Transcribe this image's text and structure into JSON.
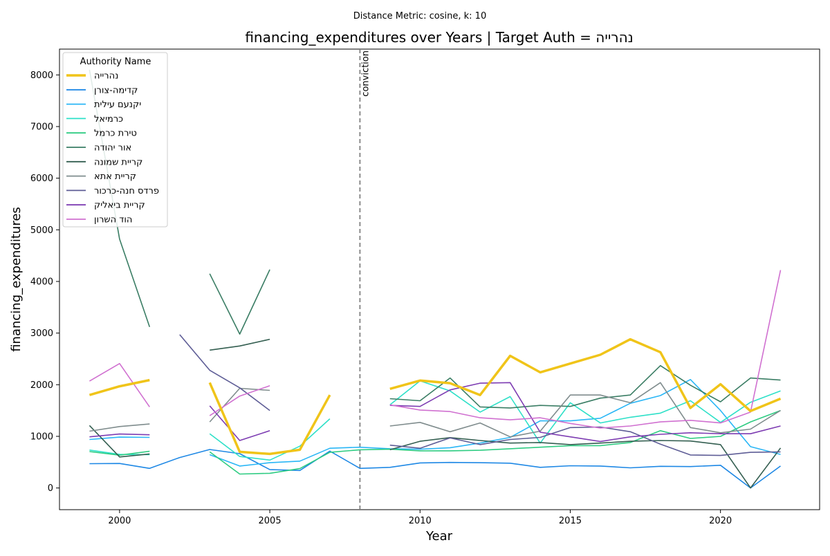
{
  "chart_data": {
    "type": "line",
    "subtitle": "Distance Metric: cosine, k: 10",
    "title": "financing_expenditures over Years | Target Auth = נהרייה",
    "xlabel": "Year",
    "ylabel": "financing_expenditures",
    "xlim": [
      1998,
      2023.3
    ],
    "ylim": [
      -420,
      8500
    ],
    "xticks": [
      2000,
      2005,
      2010,
      2015,
      2020
    ],
    "yticks": [
      0,
      1000,
      2000,
      3000,
      4000,
      5000,
      6000,
      7000,
      8000
    ],
    "grid": false,
    "legend": {
      "title": "Authority Name",
      "position": "top-left"
    },
    "annotations": [
      {
        "type": "vline",
        "x": 2008,
        "label": "conviction",
        "color": "#808080"
      }
    ],
    "x": [
      1999,
      2000,
      2001,
      2002,
      2003,
      2004,
      2005,
      2006,
      2007,
      2008,
      2009,
      2010,
      2011,
      2012,
      2013,
      2014,
      2015,
      2016,
      2017,
      2018,
      2019,
      2020,
      2021,
      2022
    ],
    "series": [
      {
        "name": "נהרייה",
        "color": "#f0c419",
        "width": 3.5,
        "target": true,
        "values": [
          1800,
          1970,
          2090,
          null,
          2040,
          700,
          660,
          740,
          1800,
          null,
          1920,
          2080,
          2030,
          1800,
          2560,
          2240,
          2410,
          2580,
          2880,
          2630,
          1550,
          2010,
          1490,
          1730
        ]
      },
      {
        "name": "קדימה-צורן",
        "color": "#1e88e5",
        "width": 1.6,
        "values": [
          470,
          475,
          380,
          590,
          745,
          665,
          355,
          340,
          715,
          380,
          400,
          485,
          495,
          490,
          480,
          400,
          430,
          425,
          390,
          420,
          415,
          440,
          0,
          425
        ]
      },
      {
        "name": "יקנעם עילית",
        "color": "#29b6f6",
        "width": 1.6,
        "values": [
          940,
          985,
          980,
          null,
          645,
          425,
          490,
          520,
          770,
          790,
          760,
          750,
          780,
          870,
          980,
          1300,
          1300,
          1350,
          1640,
          1790,
          2100,
          1500,
          800,
          650
        ]
      },
      {
        "name": "כרמיאל",
        "color": "#2ee0c8",
        "width": 1.6,
        "values": [
          735,
          650,
          645,
          null,
          1050,
          610,
          540,
          810,
          1340,
          null,
          1610,
          2075,
          1880,
          1470,
          1770,
          870,
          1650,
          1260,
          1370,
          1450,
          1690,
          1270,
          1660,
          1880
        ]
      },
      {
        "name": "טירת כרמל",
        "color": "#2ecc82",
        "width": 1.6,
        "values": [
          705,
          635,
          710,
          null,
          700,
          270,
          285,
          375,
          690,
          740,
          750,
          720,
          720,
          730,
          760,
          790,
          820,
          820,
          880,
          1110,
          960,
          1000,
          1280,
          1500
        ]
      },
      {
        "name": "אור יהודה",
        "color": "#3a7d64",
        "width": 1.6,
        "values": [
          8100,
          4820,
          3120,
          null,
          4150,
          2980,
          4230,
          null,
          null,
          null,
          1730,
          1690,
          2130,
          1570,
          1550,
          1600,
          1580,
          1740,
          1800,
          2370,
          1990,
          1670,
          2130,
          2090
        ]
      },
      {
        "name": "קריית שמונה",
        "color": "#335e50",
        "width": 1.6,
        "values": [
          1210,
          600,
          660,
          null,
          2670,
          2750,
          2880,
          null,
          null,
          null,
          740,
          905,
          975,
          920,
          870,
          880,
          840,
          870,
          905,
          920,
          910,
          840,
          0,
          775
        ]
      },
      {
        "name": "קריית אתא",
        "color": "#7f8c8d",
        "width": 1.6,
        "values": [
          1100,
          1190,
          1240,
          null,
          1280,
          1930,
          1890,
          null,
          null,
          null,
          1200,
          1270,
          1090,
          1260,
          990,
          1100,
          1800,
          1800,
          1650,
          2040,
          1170,
          1070,
          1140,
          1500
        ]
      },
      {
        "name": "פרדס חנה-כרכור",
        "color": "#5e5d96",
        "width": 1.6,
        "values": [
          null,
          null,
          null,
          2970,
          2280,
          1940,
          1500,
          null,
          null,
          null,
          830,
          770,
          970,
          840,
          940,
          980,
          1170,
          1180,
          1090,
          850,
          640,
          630,
          690,
          700
        ]
      },
      {
        "name": "קריית ביאליק",
        "color": "#7d3cb2",
        "width": 1.6,
        "values": [
          990,
          1045,
          1030,
          null,
          1590,
          920,
          1110,
          null,
          null,
          null,
          1600,
          1580,
          1900,
          2030,
          2040,
          1080,
          990,
          900,
          990,
          1040,
          1070,
          1050,
          1050,
          1200
        ]
      },
      {
        "name": "הוד השרון",
        "color": "#d070d0",
        "width": 1.6,
        "values": [
          2070,
          2410,
          1570,
          null,
          1400,
          1780,
          1980,
          null,
          null,
          null,
          1610,
          1510,
          1480,
          1360,
          1320,
          1360,
          1250,
          1160,
          1200,
          1280,
          1310,
          1260,
          1470,
          4220
        ]
      }
    ]
  }
}
